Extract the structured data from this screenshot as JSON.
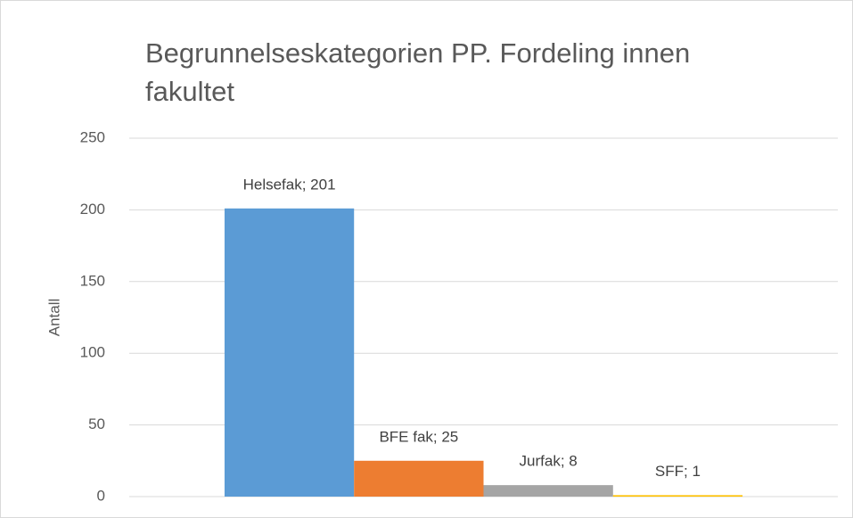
{
  "chart_data": {
    "type": "bar",
    "title": "Begrunnelseskategorien PP. Fordeling innen fakultet",
    "y_label": "Antall",
    "categories": [
      null
    ],
    "series": [
      {
        "name": "Helsefak",
        "color": "#5b9bd5",
        "values": [
          201
        ],
        "value_labels": [
          "Helsefak; 201"
        ]
      },
      {
        "name": "BFE fak",
        "color": "#ed7d31",
        "values": [
          25
        ],
        "value_labels": [
          "BFE fak; 25"
        ]
      },
      {
        "name": "Jurfak",
        "color": "#a5a5a5",
        "values": [
          8
        ],
        "value_labels": [
          "Jurfak; 8"
        ]
      },
      {
        "name": "SFF",
        "color": "#ffc000",
        "values": [
          1
        ],
        "value_labels": [
          "SFF; 1"
        ]
      }
    ],
    "ylim": [
      0,
      250
    ],
    "yticks": [
      0,
      50,
      100,
      150,
      200,
      250
    ],
    "grid": true
  }
}
